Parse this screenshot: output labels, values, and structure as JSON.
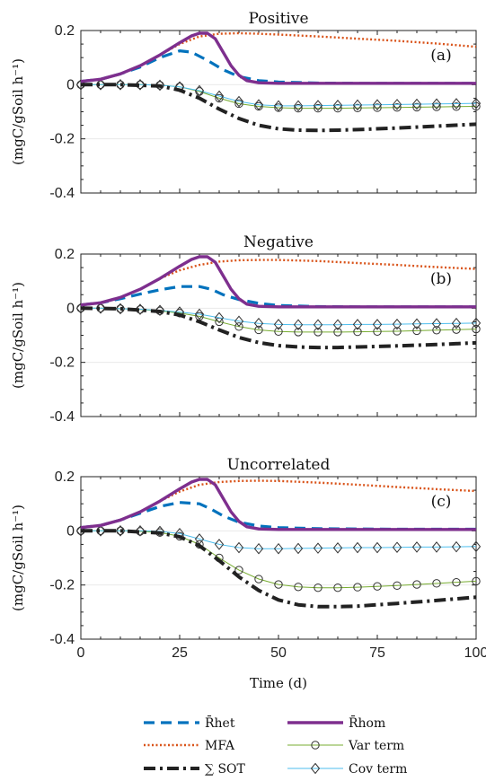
{
  "chart_data": {
    "type": "line",
    "x_label": "Time (d)",
    "y_label": "(mgC/gSoil h⁻¹)",
    "xlim": [
      0,
      100
    ],
    "ylim": [
      -0.4,
      0.2
    ],
    "x_ticks": [
      0,
      25,
      50,
      75,
      100
    ],
    "y_ticks": [
      {
        "value": 0.2,
        "label": "0.2"
      },
      {
        "value": 0,
        "label": "0"
      },
      {
        "value": -0.2,
        "label": "-0.2"
      },
      {
        "value": -0.4,
        "label": "-0.4"
      }
    ],
    "grid": "horizontal",
    "legend_position": "bottom",
    "legend": [
      {
        "key": "rhet",
        "label": "R̄het",
        "color": "#0072BD",
        "style": "dashed"
      },
      {
        "key": "rhom",
        "label": "R̄hom",
        "color": "#7E2F8E",
        "style": "solid"
      },
      {
        "key": "mfa",
        "label": "MFA",
        "color": "#D95319",
        "style": "dotted"
      },
      {
        "key": "var",
        "label": "Var term",
        "color": "#77AC30",
        "style": "circle-markers"
      },
      {
        "key": "sot",
        "label": "∑ SOT",
        "color": "#222222",
        "style": "dashdot"
      },
      {
        "key": "cov",
        "label": "Cov term",
        "color": "#4DBEEE",
        "style": "diamond-markers"
      }
    ],
    "panels": [
      {
        "title": "Positive",
        "label": "(a)",
        "series": {
          "rhet": {
            "x": [
              0,
              5,
              10,
              15,
              20,
              25,
              28,
              32,
              36,
              40,
              45,
              50,
              60,
              70,
              80,
              90,
              100
            ],
            "y": [
              0.012,
              0.02,
              0.04,
              0.065,
              0.1,
              0.125,
              0.12,
              0.09,
              0.055,
              0.03,
              0.015,
              0.01,
              0.006,
              0.005,
              0.005,
              0.005,
              0.005
            ]
          },
          "rhom": {
            "x": [
              0,
              5,
              10,
              15,
              20,
              25,
              28,
              30,
              32,
              34,
              36,
              38,
              40,
              42,
              45,
              50,
              60,
              80,
              100
            ],
            "y": [
              0.012,
              0.02,
              0.04,
              0.07,
              0.11,
              0.155,
              0.18,
              0.19,
              0.19,
              0.17,
              0.12,
              0.07,
              0.035,
              0.015,
              0.007,
              0.005,
              0.005,
              0.005,
              0.005
            ]
          },
          "mfa": {
            "x": [
              0,
              5,
              10,
              15,
              20,
              25,
              30,
              35,
              40,
              45,
              50,
              60,
              70,
              80,
              90,
              100
            ],
            "y": [
              0.012,
              0.02,
              0.04,
              0.07,
              0.11,
              0.15,
              0.178,
              0.188,
              0.19,
              0.188,
              0.185,
              0.178,
              0.17,
              0.162,
              0.152,
              0.14
            ]
          },
          "var": {
            "x": [
              0,
              5,
              10,
              15,
              20,
              25,
              30,
              35,
              40,
              45,
              50,
              55,
              60,
              65,
              70,
              75,
              80,
              85,
              90,
              95,
              100
            ],
            "y": [
              0,
              0,
              0,
              0,
              -0.002,
              -0.008,
              -0.025,
              -0.05,
              -0.07,
              -0.08,
              -0.085,
              -0.087,
              -0.087,
              -0.087,
              -0.086,
              -0.085,
              -0.084,
              -0.083,
              -0.082,
              -0.081,
              -0.08
            ]
          },
          "sot": {
            "x": [
              0,
              10,
              20,
              25,
              30,
              35,
              40,
              45,
              50,
              55,
              60,
              65,
              70,
              80,
              90,
              100
            ],
            "y": [
              0,
              0,
              -0.005,
              -0.02,
              -0.05,
              -0.09,
              -0.125,
              -0.15,
              -0.163,
              -0.168,
              -0.169,
              -0.168,
              -0.166,
              -0.16,
              -0.153,
              -0.146
            ]
          },
          "cov": {
            "x": [
              0,
              5,
              10,
              15,
              20,
              25,
              30,
              35,
              40,
              45,
              50,
              55,
              60,
              65,
              70,
              75,
              80,
              85,
              90,
              95,
              100
            ],
            "y": [
              0,
              0,
              0,
              0,
              -0.002,
              -0.008,
              -0.022,
              -0.042,
              -0.062,
              -0.074,
              -0.078,
              -0.078,
              -0.077,
              -0.076,
              -0.075,
              -0.074,
              -0.073,
              -0.072,
              -0.071,
              -0.07,
              -0.069
            ]
          }
        }
      },
      {
        "title": "Negative",
        "label": "(b)",
        "series": {
          "rhet": {
            "x": [
              0,
              5,
              10,
              15,
              20,
              25,
              30,
              33,
              36,
              40,
              45,
              50,
              60,
              70,
              80,
              90,
              100
            ],
            "y": [
              0.012,
              0.02,
              0.035,
              0.052,
              0.068,
              0.08,
              0.08,
              0.07,
              0.05,
              0.032,
              0.018,
              0.01,
              0.006,
              0.005,
              0.005,
              0.005,
              0.005
            ]
          },
          "rhom": {
            "x": [
              0,
              5,
              10,
              15,
              20,
              25,
              28,
              30,
              32,
              34,
              36,
              38,
              40,
              42,
              45,
              50,
              60,
              80,
              100
            ],
            "y": [
              0.012,
              0.02,
              0.04,
              0.07,
              0.11,
              0.155,
              0.18,
              0.19,
              0.19,
              0.17,
              0.12,
              0.07,
              0.035,
              0.015,
              0.007,
              0.005,
              0.005,
              0.005,
              0.005
            ]
          },
          "mfa": {
            "x": [
              0,
              5,
              10,
              15,
              20,
              25,
              30,
              35,
              40,
              45,
              50,
              60,
              70,
              80,
              90,
              100
            ],
            "y": [
              0.012,
              0.02,
              0.04,
              0.07,
              0.11,
              0.14,
              0.16,
              0.172,
              0.177,
              0.178,
              0.178,
              0.174,
              0.167,
              0.16,
              0.152,
              0.145
            ]
          },
          "var": {
            "x": [
              0,
              5,
              10,
              15,
              20,
              25,
              30,
              35,
              40,
              45,
              50,
              55,
              60,
              65,
              70,
              75,
              80,
              85,
              90,
              95,
              100
            ],
            "y": [
              0,
              0,
              -0.002,
              -0.005,
              -0.01,
              -0.018,
              -0.03,
              -0.05,
              -0.068,
              -0.08,
              -0.086,
              -0.088,
              -0.088,
              -0.088,
              -0.087,
              -0.086,
              -0.085,
              -0.083,
              -0.081,
              -0.079,
              -0.077
            ]
          },
          "sot": {
            "x": [
              0,
              10,
              20,
              25,
              30,
              35,
              40,
              45,
              50,
              55,
              60,
              65,
              70,
              80,
              90,
              100
            ],
            "y": [
              0,
              -0.002,
              -0.012,
              -0.025,
              -0.05,
              -0.08,
              -0.108,
              -0.127,
              -0.138,
              -0.143,
              -0.145,
              -0.145,
              -0.143,
              -0.139,
              -0.134,
              -0.128
            ]
          },
          "cov": {
            "x": [
              0,
              5,
              10,
              15,
              20,
              25,
              30,
              35,
              40,
              45,
              50,
              55,
              60,
              65,
              70,
              75,
              80,
              85,
              90,
              95,
              100
            ],
            "y": [
              0,
              0,
              -0.002,
              -0.004,
              -0.008,
              -0.014,
              -0.022,
              -0.035,
              -0.048,
              -0.056,
              -0.06,
              -0.061,
              -0.061,
              -0.061,
              -0.06,
              -0.06,
              -0.059,
              -0.058,
              -0.057,
              -0.056,
              -0.055
            ]
          }
        }
      },
      {
        "title": "Uncorrelated",
        "label": "(c)",
        "series": {
          "rhet": {
            "x": [
              0,
              5,
              10,
              15,
              20,
              25,
              30,
              33,
              36,
              40,
              45,
              50,
              60,
              70,
              80,
              90,
              100
            ],
            "y": [
              0.012,
              0.02,
              0.04,
              0.065,
              0.09,
              0.105,
              0.1,
              0.08,
              0.055,
              0.032,
              0.018,
              0.012,
              0.008,
              0.007,
              0.006,
              0.006,
              0.006
            ]
          },
          "rhom": {
            "x": [
              0,
              5,
              10,
              15,
              20,
              25,
              28,
              30,
              32,
              34,
              36,
              38,
              40,
              42,
              45,
              50,
              60,
              80,
              100
            ],
            "y": [
              0.012,
              0.02,
              0.04,
              0.07,
              0.11,
              0.155,
              0.18,
              0.19,
              0.19,
              0.17,
              0.12,
              0.07,
              0.035,
              0.015,
              0.007,
              0.005,
              0.005,
              0.005,
              0.005
            ]
          },
          "mfa": {
            "x": [
              0,
              5,
              10,
              15,
              20,
              25,
              30,
              35,
              40,
              45,
              50,
              60,
              70,
              80,
              90,
              100
            ],
            "y": [
              0.012,
              0.02,
              0.04,
              0.07,
              0.11,
              0.145,
              0.17,
              0.18,
              0.184,
              0.185,
              0.184,
              0.178,
              0.17,
              0.162,
              0.154,
              0.147
            ]
          },
          "var": {
            "x": [
              0,
              5,
              10,
              15,
              20,
              25,
              30,
              35,
              40,
              45,
              50,
              55,
              60,
              65,
              70,
              75,
              80,
              85,
              90,
              95,
              100
            ],
            "y": [
              0,
              0,
              0,
              -0.002,
              -0.006,
              -0.02,
              -0.05,
              -0.1,
              -0.145,
              -0.178,
              -0.198,
              -0.207,
              -0.21,
              -0.21,
              -0.208,
              -0.205,
              -0.202,
              -0.198,
              -0.194,
              -0.19,
              -0.186
            ]
          },
          "sot": {
            "x": [
              0,
              10,
              20,
              25,
              30,
              35,
              40,
              45,
              50,
              55,
              60,
              65,
              70,
              80,
              90,
              100
            ],
            "y": [
              0,
              0,
              -0.008,
              -0.022,
              -0.055,
              -0.11,
              -0.17,
              -0.22,
              -0.255,
              -0.273,
              -0.28,
              -0.28,
              -0.278,
              -0.268,
              -0.257,
              -0.245
            ]
          },
          "cov": {
            "x": [
              0,
              5,
              10,
              15,
              20,
              25,
              30,
              35,
              40,
              45,
              50,
              55,
              60,
              65,
              70,
              75,
              80,
              85,
              90,
              95,
              100
            ],
            "y": [
              0,
              0,
              0,
              0,
              -0.002,
              -0.01,
              -0.03,
              -0.05,
              -0.062,
              -0.066,
              -0.066,
              -0.065,
              -0.064,
              -0.063,
              -0.062,
              -0.062,
              -0.061,
              -0.06,
              -0.06,
              -0.059,
              -0.058
            ]
          }
        }
      }
    ]
  }
}
